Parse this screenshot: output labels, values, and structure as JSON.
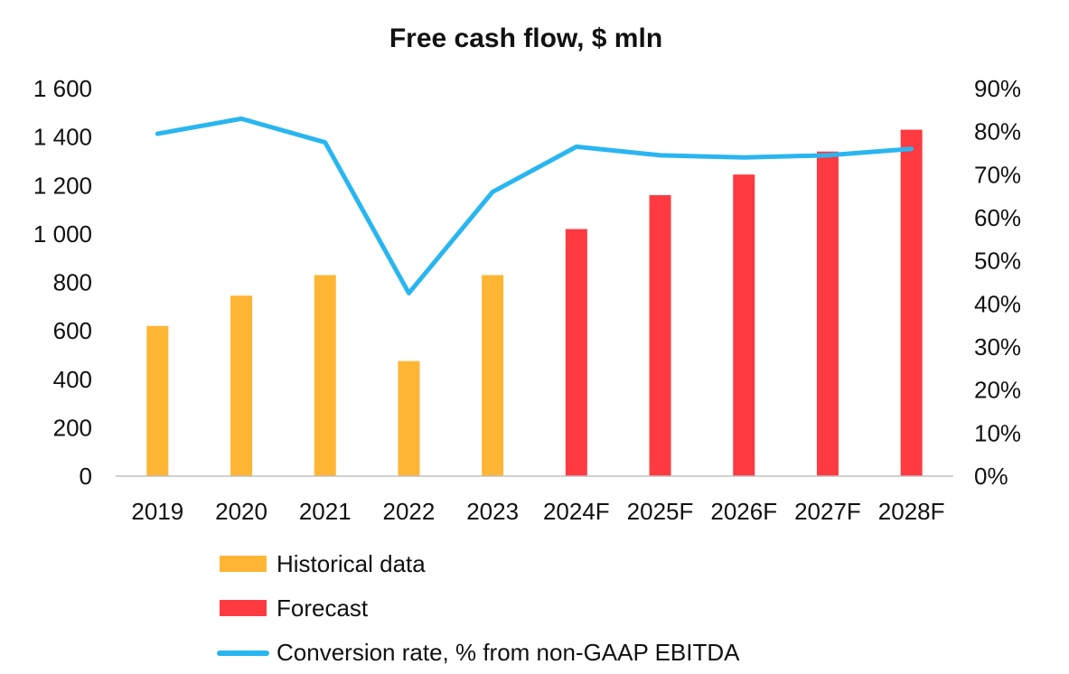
{
  "chart_data": {
    "type": "bar+line",
    "title": "Free cash flow, $ mln",
    "categories": [
      "2019",
      "2020",
      "2021",
      "2022",
      "2023",
      "2024F",
      "2025F",
      "2026F",
      "2027F",
      "2028F"
    ],
    "series": [
      {
        "name": "Historical data",
        "type": "bar",
        "axis": "left",
        "color": "#FFB534",
        "values": [
          620,
          745,
          830,
          475,
          830,
          null,
          null,
          null,
          null,
          null
        ]
      },
      {
        "name": "Forecast",
        "type": "bar",
        "axis": "left",
        "color": "#FF3A40",
        "values": [
          null,
          null,
          null,
          null,
          null,
          1020,
          1160,
          1245,
          1340,
          1430
        ]
      },
      {
        "name": "Conversion rate, % from non-GAAP EBITDA",
        "type": "line",
        "axis": "right",
        "color": "#29B6F0",
        "values": [
          79.5,
          83,
          77.5,
          42.5,
          66,
          76.5,
          74.5,
          74,
          74.5,
          76
        ]
      }
    ],
    "y_left": {
      "ylim": [
        0,
        1600
      ],
      "ticks": [
        0,
        200,
        400,
        600,
        800,
        1000,
        1200,
        1400,
        1600
      ],
      "tick_labels": [
        "0",
        "200",
        "400",
        "600",
        "800",
        "1 000",
        "1 200",
        "1 400",
        "1 600"
      ]
    },
    "y_right": {
      "ylim": [
        0,
        90
      ],
      "ticks": [
        0,
        10,
        20,
        30,
        40,
        50,
        60,
        70,
        80,
        90
      ],
      "tick_labels": [
        "0%",
        "10%",
        "20%",
        "30%",
        "40%",
        "50%",
        "60%",
        "70%",
        "80%",
        "90%"
      ]
    },
    "grid": false,
    "legend_position": "bottom-left"
  }
}
